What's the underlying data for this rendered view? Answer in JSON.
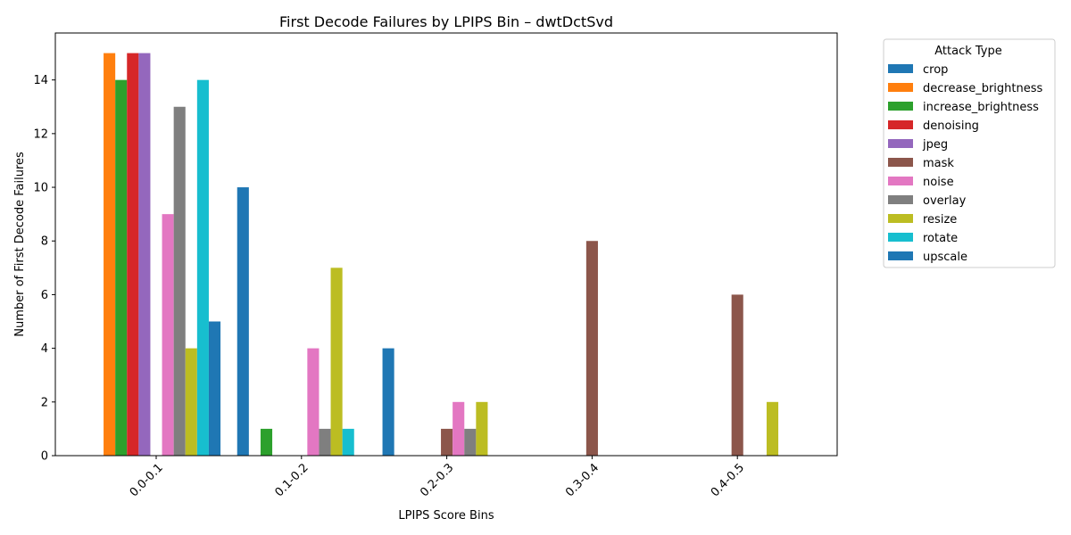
{
  "chart_data": {
    "type": "bar",
    "title": "First Decode Failures by LPIPS Bin – dwtDctSvd",
    "xlabel": "LPIPS Score Bins",
    "ylabel": "Number of First Decode Failures",
    "categories": [
      "0.0-0.1",
      "0.1-0.2",
      "0.2-0.3",
      "0.3-0.4",
      "0.4-0.5"
    ],
    "ylim": [
      0,
      15.75
    ],
    "yticks": [
      0,
      2,
      4,
      6,
      8,
      10,
      12,
      14
    ],
    "grid": false,
    "legend": {
      "title": "Attack Type",
      "placement": "outside-right"
    },
    "series": [
      {
        "name": "crop",
        "color": "#1f77b4",
        "values": [
          0,
          10,
          4,
          0,
          0
        ]
      },
      {
        "name": "decrease_brightness",
        "color": "#ff7f0e",
        "values": [
          15,
          0,
          0,
          0,
          0
        ]
      },
      {
        "name": "increase_brightness",
        "color": "#2ca02c",
        "values": [
          14,
          1,
          0,
          0,
          0
        ]
      },
      {
        "name": "denoising",
        "color": "#d62728",
        "values": [
          15,
          0,
          0,
          0,
          0
        ]
      },
      {
        "name": "jpeg",
        "color": "#9467bd",
        "values": [
          15,
          0,
          0,
          0,
          0
        ]
      },
      {
        "name": "mask",
        "color": "#8c564b",
        "values": [
          0,
          0,
          1,
          8,
          6
        ]
      },
      {
        "name": "noise",
        "color": "#e377c2",
        "values": [
          9,
          4,
          2,
          0,
          0
        ]
      },
      {
        "name": "overlay",
        "color": "#7f7f7f",
        "values": [
          13,
          1,
          1,
          0,
          0
        ]
      },
      {
        "name": "resize",
        "color": "#bcbd22",
        "values": [
          4,
          7,
          2,
          0,
          2
        ]
      },
      {
        "name": "rotate",
        "color": "#17becf",
        "values": [
          14,
          1,
          0,
          0,
          0
        ]
      },
      {
        "name": "upscale",
        "color": "#1f77b4",
        "values": [
          5,
          0,
          0,
          0,
          0
        ]
      }
    ]
  }
}
